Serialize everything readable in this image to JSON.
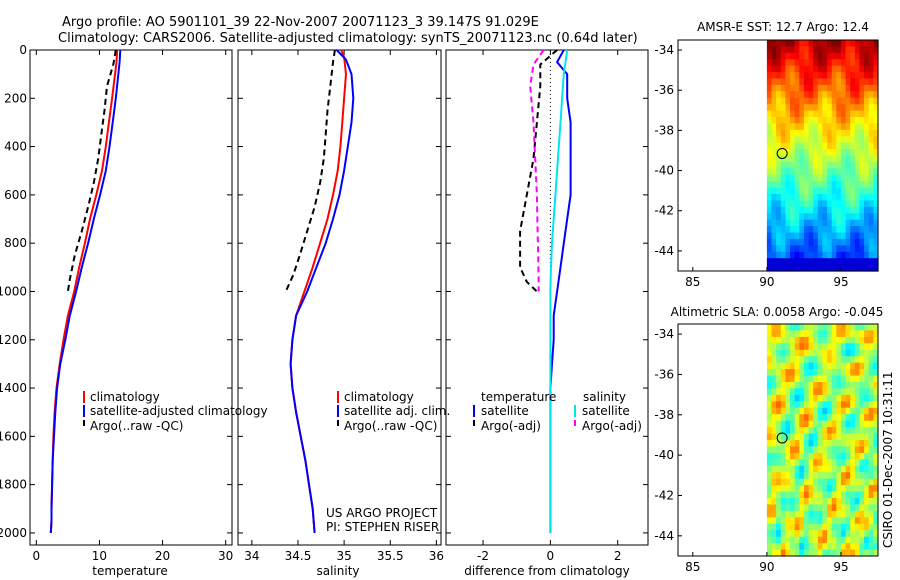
{
  "header": {
    "title_line1": "Argo profile: AO 5901101_39 22-Nov-2007 20071123_3 39.147S 91.029E",
    "title_line2": "Climatology: CARS2006. Satellite-adjusted climatology: synTS_20071123.nc (0.64d later)"
  },
  "credits": {
    "line1": "US ARGO PROJECT",
    "line2": "PI: STEPHEN RISER",
    "side": "CSIRO 01-Dec-2007 10:31:11"
  },
  "colors": {
    "climatology": "#ff0000",
    "satellite": "#0000ff",
    "argo": "#000000",
    "salinity_satellite": "#00e5ee",
    "salinity_argo_adj": "#ff00ff",
    "marker": "#000000"
  },
  "chart_data": [
    {
      "type": "line",
      "id": "temperature",
      "xlabel": "temperature",
      "ylabel": "",
      "xlim": [
        -1,
        31
      ],
      "ylim": [
        2050,
        0
      ],
      "xticks": [
        0,
        10,
        20,
        30
      ],
      "yticks": [
        0,
        200,
        400,
        600,
        800,
        1000,
        1200,
        1400,
        1600,
        1800,
        2000
      ],
      "series": [
        {
          "name": "climatology",
          "color": "#ff0000",
          "dash": "",
          "x": [
            12.8,
            12.7,
            12.0,
            11.5,
            11.0,
            10.4,
            9.5,
            8.5,
            7.7,
            6.8,
            6.0,
            5.0,
            4.3,
            3.7,
            3.2,
            2.9,
            2.7,
            2.6,
            2.5,
            2.4,
            2.4,
            2.3
          ],
          "y": [
            0,
            50,
            200,
            300,
            400,
            500,
            600,
            700,
            800,
            900,
            1000,
            1100,
            1200,
            1300,
            1400,
            1500,
            1600,
            1700,
            1800,
            1900,
            1950,
            2000
          ]
        },
        {
          "name": "satellite-adjusted climatology",
          "color": "#0000ff",
          "dash": "",
          "x": [
            13.3,
            13.2,
            12.6,
            12.1,
            11.6,
            11.0,
            10.1,
            9.1,
            8.2,
            7.2,
            6.3,
            5.3,
            4.6,
            3.8,
            3.3,
            3.0,
            2.8,
            2.6,
            2.5,
            2.4,
            2.4,
            2.3
          ],
          "y": [
            0,
            50,
            200,
            300,
            400,
            500,
            600,
            700,
            800,
            900,
            1000,
            1100,
            1200,
            1300,
            1400,
            1500,
            1600,
            1700,
            1800,
            1900,
            1950,
            2000
          ]
        },
        {
          "name": "Argo(..raw -QC)",
          "color": "#000000",
          "dash": "6,4",
          "x": [
            12.6,
            12.2,
            11.2,
            10.8,
            10.3,
            9.8,
            9.1,
            8.2,
            7.2,
            6.1,
            5.3,
            5.0
          ],
          "y": [
            0,
            60,
            150,
            250,
            350,
            450,
            550,
            650,
            750,
            850,
            950,
            1000
          ]
        }
      ],
      "legend": {
        "position": "lower-right",
        "entries": [
          "climatology",
          "satellite-adjusted climatology",
          "Argo(..raw -QC)"
        ]
      }
    },
    {
      "type": "line",
      "id": "salinity",
      "xlabel": "salinity",
      "xlim": [
        33.85,
        36.05
      ],
      "ylim": [
        2050,
        0
      ],
      "xticks": [
        34,
        34.5,
        35,
        35.5,
        36
      ],
      "xticklabels": [
        "34",
        "34.5",
        "35",
        "35.5",
        "36"
      ],
      "series": [
        {
          "name": "climatology",
          "color": "#ff0000",
          "dash": "",
          "x": [
            34.97,
            35.0,
            35.02,
            35.0,
            34.98,
            34.96,
            34.93,
            34.88,
            34.82,
            34.74,
            34.66,
            34.57,
            34.48,
            34.44,
            34.42,
            34.44,
            34.48,
            34.53,
            34.58,
            34.62,
            34.66,
            34.68
          ],
          "y": [
            0,
            30,
            100,
            200,
            300,
            400,
            500,
            600,
            700,
            800,
            900,
            1000,
            1100,
            1200,
            1300,
            1400,
            1500,
            1600,
            1700,
            1800,
            1900,
            2000
          ]
        },
        {
          "name": "satellite adj. clim.",
          "color": "#0000ff",
          "dash": "",
          "x": [
            34.92,
            35.02,
            35.08,
            35.1,
            35.08,
            35.04,
            35.0,
            34.95,
            34.88,
            34.8,
            34.7,
            34.6,
            34.48,
            34.44,
            34.42,
            34.44,
            34.48,
            34.53,
            34.58,
            34.62,
            34.66,
            34.68
          ],
          "y": [
            0,
            40,
            100,
            200,
            300,
            400,
            500,
            600,
            700,
            800,
            900,
            1000,
            1100,
            1200,
            1300,
            1400,
            1500,
            1600,
            1700,
            1800,
            1900,
            2000
          ]
        },
        {
          "name": "Argo(..raw -QC)",
          "color": "#000000",
          "dash": "6,4",
          "x": [
            34.9,
            34.88,
            34.85,
            34.82,
            34.8,
            34.78,
            34.74,
            34.68,
            34.6,
            34.52,
            34.45,
            34.38,
            34.36
          ],
          "y": [
            0,
            50,
            150,
            250,
            350,
            450,
            550,
            650,
            750,
            850,
            930,
            990,
            1000
          ]
        }
      ],
      "legend": {
        "position": "lower-right",
        "entries": [
          "climatology",
          "satellite adj. clim.",
          "Argo(..raw -QC)"
        ]
      }
    },
    {
      "type": "line",
      "id": "difference",
      "xlabel": "difference from climatology",
      "xlim": [
        -3.1,
        2.9
      ],
      "ylim": [
        2050,
        0
      ],
      "xticks": [
        -2,
        0,
        2
      ],
      "xticklabels": [
        "-2",
        "0",
        "2"
      ],
      "series": [
        {
          "name": "temperature satellite",
          "color": "#0000ff",
          "dash": "",
          "x": [
            0.4,
            0.2,
            0.5,
            0.5,
            0.6,
            0.6,
            0.6,
            0.6,
            0.5,
            0.4,
            0.3,
            0.2,
            0.1,
            0.1,
            0.05,
            0.0,
            0.0,
            0.0,
            0.0,
            0.0
          ],
          "y": [
            0,
            50,
            100,
            200,
            300,
            400,
            500,
            600,
            700,
            800,
            900,
            1000,
            1100,
            1200,
            1300,
            1400,
            1500,
            1600,
            1800,
            2000
          ]
        },
        {
          "name": "salinity satellite",
          "color": "#00e5ee",
          "dash": "",
          "x": [
            0.5,
            0.4,
            0.35,
            0.3,
            0.25,
            0.2,
            0.15,
            0.1,
            0.05,
            0.02,
            0.0,
            0.0,
            0.0,
            0.0,
            0.0,
            0.0
          ],
          "y": [
            0,
            100,
            200,
            300,
            400,
            500,
            600,
            700,
            800,
            900,
            1000,
            1200,
            1400,
            1600,
            1800,
            2000
          ]
        },
        {
          "name": "temperature Argo(-adj)",
          "color": "#000000",
          "dash": "6,4",
          "x": [
            0.2,
            -0.3,
            -0.3,
            -0.4,
            -0.5,
            -0.7,
            -0.9,
            -0.9,
            -0.7,
            -0.4
          ],
          "y": [
            0,
            60,
            150,
            300,
            450,
            600,
            750,
            900,
            960,
            1000
          ]
        },
        {
          "name": "salinity Argo(-adj)",
          "color": "#ff00ff",
          "dash": "6,4",
          "x": [
            -0.2,
            -0.5,
            -0.6,
            -0.5,
            -0.45,
            -0.4,
            -0.38,
            -0.36,
            -0.35,
            -0.35
          ],
          "y": [
            0,
            60,
            150,
            300,
            450,
            600,
            750,
            850,
            950,
            1000
          ]
        }
      ],
      "legend": {
        "position": "lower-center",
        "group1_title": "temperature",
        "group2_title": "salinity",
        "entries": [
          "satellite",
          "Argo(-adj)",
          "satellite",
          "Argo(-adj)"
        ]
      }
    },
    {
      "type": "heatmap",
      "id": "sst_map",
      "title": "AMSR-E SST: 12.7 Argo: 12.4",
      "xlim": [
        84,
        97.5
      ],
      "ylim": [
        -45,
        -33.5
      ],
      "xticks": [
        85,
        90,
        95
      ],
      "yticks": [
        -34,
        -36,
        -38,
        -40,
        -42,
        -44
      ],
      "data_xlim": [
        90,
        97.5
      ],
      "marker": {
        "x": 91.03,
        "y": -39.15
      }
    },
    {
      "type": "heatmap",
      "id": "sla_map",
      "title": "Altimetric SLA: 0.0058 Argo: -0.045",
      "xlim": [
        84,
        97.5
      ],
      "ylim": [
        -45,
        -33.5
      ],
      "xticks": [
        85,
        90,
        95
      ],
      "yticks": [
        -34,
        -36,
        -38,
        -40,
        -42,
        -44
      ],
      "data_xlim": [
        90,
        97.5
      ],
      "marker": {
        "x": 91.03,
        "y": -39.15
      }
    }
  ]
}
